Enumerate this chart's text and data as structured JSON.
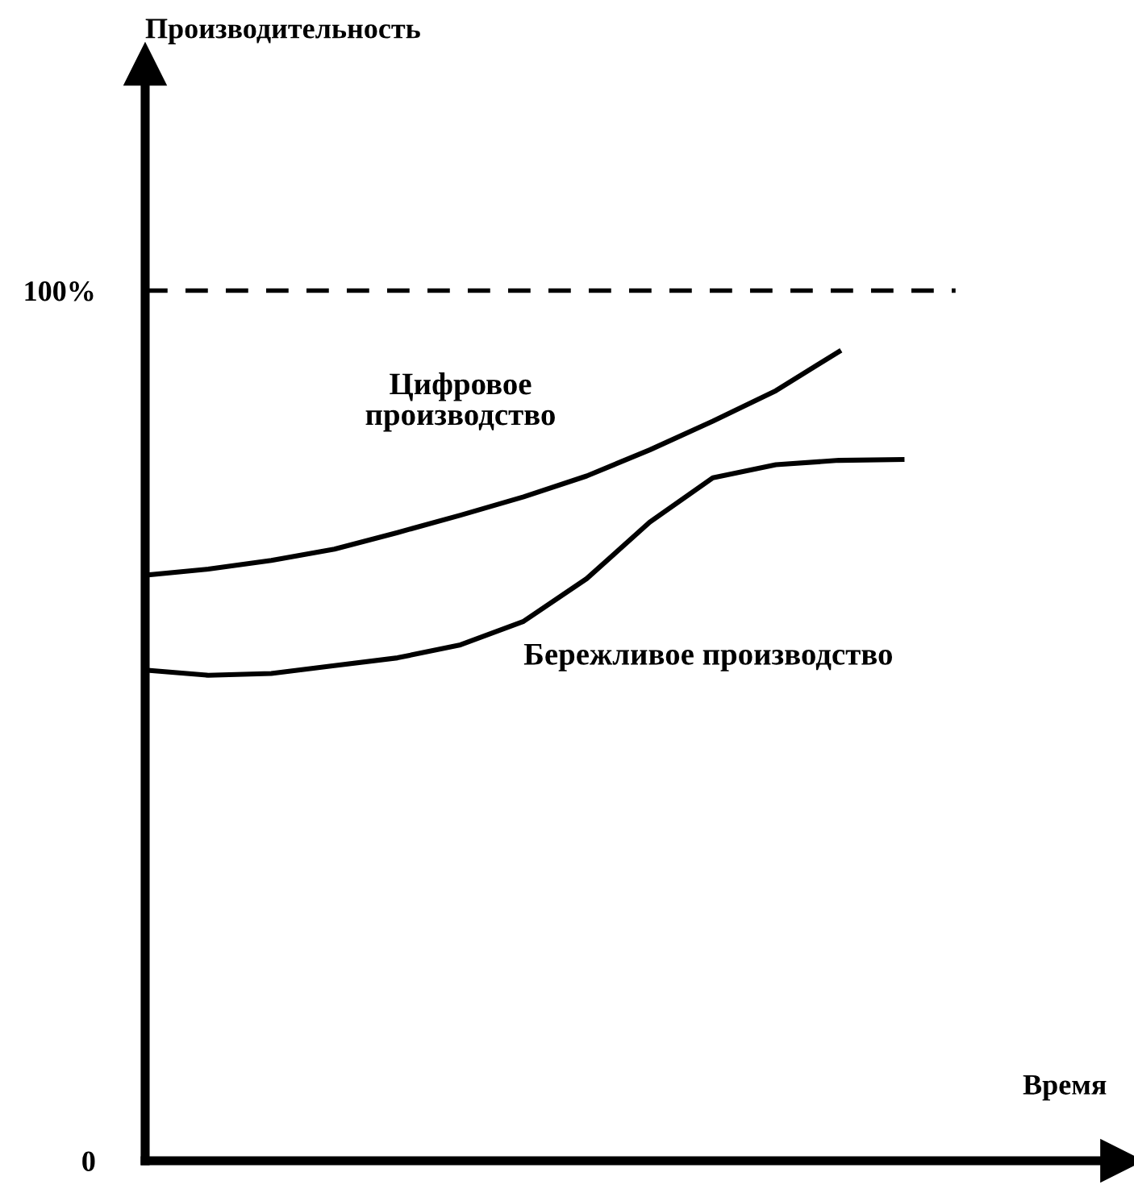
{
  "chart_data": {
    "type": "line",
    "ylabel": "Производительность",
    "xlabel": "Время",
    "categories": [
      null,
      null,
      null,
      null,
      null,
      null,
      null,
      null,
      null,
      null,
      null,
      null,
      null
    ],
    "series": [
      {
        "name": "Цифровое\nпроизводство",
        "color": "#000000",
        "values": [
          67.3,
          68,
          69,
          70.3,
          72.2,
          74.2,
          76.3,
          78.7,
          81.7,
          85,
          88.5,
          93,
          null
        ]
      },
      {
        "name": "Бережливое производство",
        "color": "#000000",
        "values": [
          56.4,
          55.8,
          56,
          56.9,
          57.8,
          59.3,
          62,
          66.9,
          73.4,
          78.5,
          80,
          80.5,
          80.6
        ]
      }
    ],
    "ylim": [
      0,
      126
    ],
    "yticks": [
      0,
      {
        "value": 100,
        "label": "100%"
      }
    ],
    "tick_labels": "y",
    "ref_lines": [
      {
        "axis": "y",
        "value": 100,
        "line_style": "dashed",
        "color": "#000000"
      }
    ],
    "grid": false,
    "legend": false,
    "marker": "none",
    "line_style": "solid"
  }
}
